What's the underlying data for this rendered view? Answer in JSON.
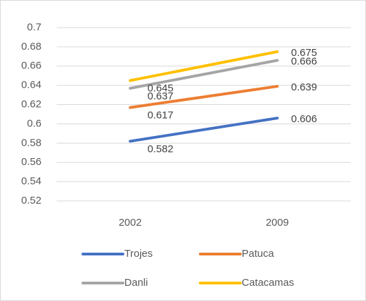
{
  "chart_data": {
    "type": "line",
    "categories": [
      "2002",
      "2009"
    ],
    "series": [
      {
        "name": "Trojes",
        "color": "#4472c4",
        "values": [
          0.582,
          0.606
        ]
      },
      {
        "name": "Patuca",
        "color": "#ed7d31",
        "values": [
          0.617,
          0.639
        ]
      },
      {
        "name": "Danli",
        "color": "#a5a5a5",
        "values": [
          0.637,
          0.666
        ]
      },
      {
        "name": "Catacamas",
        "color": "#ffc000",
        "values": [
          0.645,
          0.675
        ]
      }
    ],
    "ylim": [
      0.52,
      0.7
    ],
    "yticks": [
      0.52,
      0.54,
      0.56,
      0.58,
      0.6,
      0.62,
      0.64,
      0.66,
      0.68,
      0.7
    ],
    "grid": true,
    "legend": "bottom",
    "data_labels": true
  }
}
